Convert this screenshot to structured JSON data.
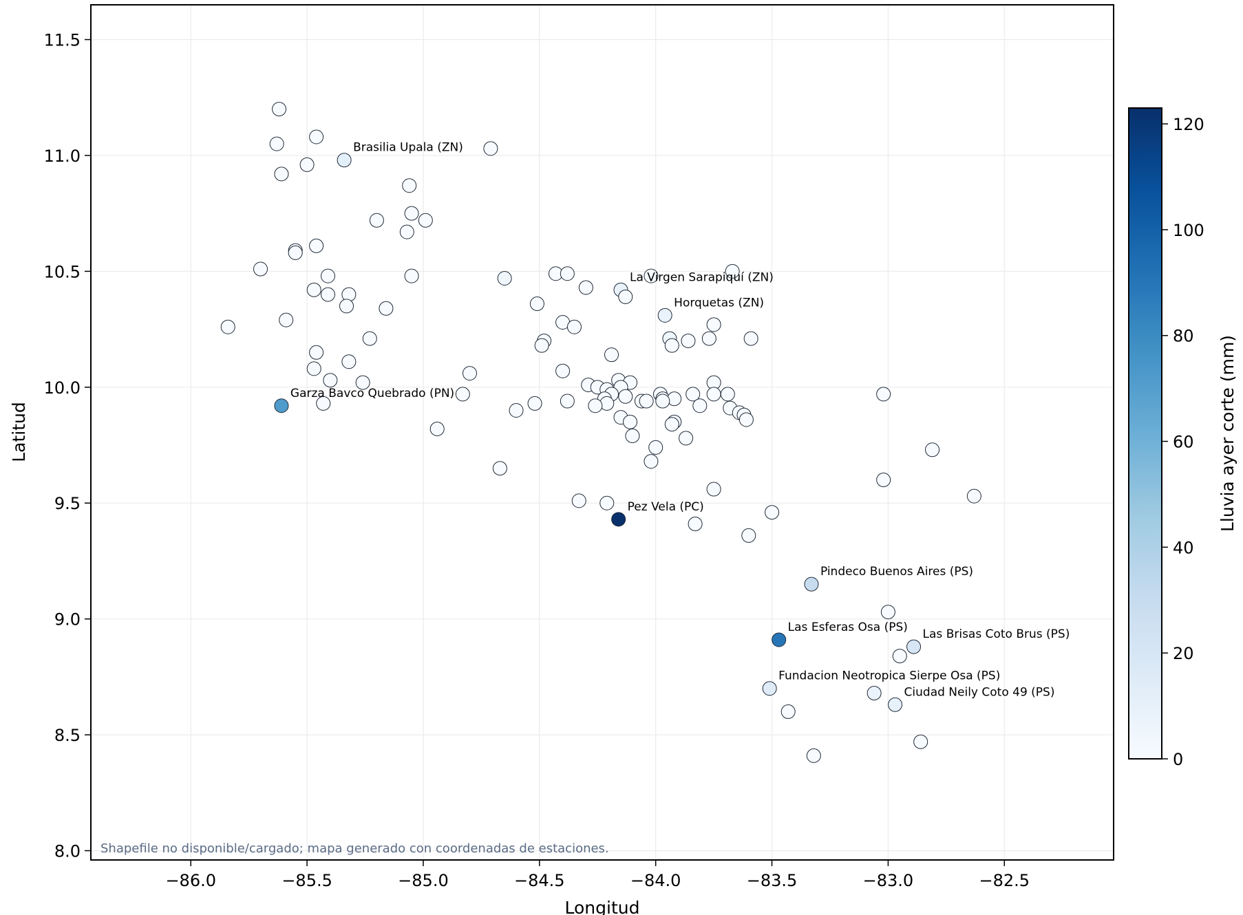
{
  "chart_data": {
    "type": "scatter",
    "title": "",
    "xlabel": "Longitud",
    "ylabel": "Latitud",
    "xlim": [
      -86.43,
      -82.03
    ],
    "ylim": [
      7.96,
      11.65
    ],
    "xticks": [
      -86.0,
      -85.5,
      -85.0,
      -84.5,
      -84.0,
      -83.5,
      -83.0,
      -82.5
    ],
    "xtick_labels": [
      "−86.0",
      "−85.5",
      "−85.0",
      "−84.5",
      "−84.0",
      "−83.5",
      "−83.0",
      "−82.5"
    ],
    "yticks": [
      8.0,
      8.5,
      9.0,
      9.5,
      10.0,
      10.5,
      11.0,
      11.5
    ],
    "ytick_labels": [
      "8.0",
      "8.5",
      "9.0",
      "9.5",
      "10.0",
      "10.5",
      "11.0",
      "11.5"
    ],
    "grid": true,
    "colormap": "Blues",
    "colorbar": {
      "label": "Lluvia ayer corte (mm)",
      "range": [
        0,
        123
      ],
      "ticks": [
        0,
        20,
        40,
        60,
        80,
        100,
        120
      ],
      "tick_labels": [
        "0",
        "20",
        "40",
        "60",
        "80",
        "100",
        "120"
      ]
    },
    "note": "Shapefile no disponible/cargado; mapa generado con coordenadas de estaciones.",
    "points": [
      {
        "x": -85.62,
        "y": 11.2,
        "v": 0
      },
      {
        "x": -85.63,
        "y": 11.05,
        "v": 0
      },
      {
        "x": -85.46,
        "y": 11.08,
        "v": 0
      },
      {
        "x": -85.5,
        "y": 10.96,
        "v": 0
      },
      {
        "x": -85.61,
        "y": 10.92,
        "v": 0
      },
      {
        "x": -85.34,
        "y": 10.98,
        "v": 12
      },
      {
        "x": -84.71,
        "y": 11.03,
        "v": 0
      },
      {
        "x": -85.06,
        "y": 10.87,
        "v": 0
      },
      {
        "x": -85.2,
        "y": 10.72,
        "v": 0
      },
      {
        "x": -85.05,
        "y": 10.75,
        "v": 0
      },
      {
        "x": -84.99,
        "y": 10.72,
        "v": 0
      },
      {
        "x": -85.07,
        "y": 10.67,
        "v": 0
      },
      {
        "x": -85.55,
        "y": 10.59,
        "v": 0
      },
      {
        "x": -85.55,
        "y": 10.58,
        "v": 0
      },
      {
        "x": -85.46,
        "y": 10.61,
        "v": 0
      },
      {
        "x": -85.7,
        "y": 10.51,
        "v": 0
      },
      {
        "x": -85.41,
        "y": 10.48,
        "v": 0
      },
      {
        "x": -85.05,
        "y": 10.48,
        "v": 0
      },
      {
        "x": -85.47,
        "y": 10.42,
        "v": 0
      },
      {
        "x": -85.41,
        "y": 10.4,
        "v": 0
      },
      {
        "x": -85.32,
        "y": 10.4,
        "v": 0
      },
      {
        "x": -85.33,
        "y": 10.35,
        "v": 0
      },
      {
        "x": -85.16,
        "y": 10.34,
        "v": 0
      },
      {
        "x": -85.84,
        "y": 10.26,
        "v": 0
      },
      {
        "x": -85.59,
        "y": 10.29,
        "v": 0
      },
      {
        "x": -85.23,
        "y": 10.21,
        "v": 0
      },
      {
        "x": -85.46,
        "y": 10.15,
        "v": 0
      },
      {
        "x": -85.32,
        "y": 10.11,
        "v": 0
      },
      {
        "x": -85.47,
        "y": 10.08,
        "v": 0
      },
      {
        "x": -85.4,
        "y": 10.03,
        "v": 0
      },
      {
        "x": -85.26,
        "y": 10.02,
        "v": 0
      },
      {
        "x": -85.43,
        "y": 9.93,
        "v": 0
      },
      {
        "x": -85.61,
        "y": 9.92,
        "v": 72
      },
      {
        "x": -84.8,
        "y": 10.06,
        "v": 0
      },
      {
        "x": -84.83,
        "y": 9.97,
        "v": 0
      },
      {
        "x": -84.94,
        "y": 9.82,
        "v": 0
      },
      {
        "x": -84.65,
        "y": 10.47,
        "v": 5
      },
      {
        "x": -84.43,
        "y": 10.49,
        "v": 0
      },
      {
        "x": -84.38,
        "y": 10.49,
        "v": 0
      },
      {
        "x": -84.3,
        "y": 10.43,
        "v": 0
      },
      {
        "x": -84.51,
        "y": 10.36,
        "v": 0
      },
      {
        "x": -84.4,
        "y": 10.28,
        "v": 0
      },
      {
        "x": -84.35,
        "y": 10.26,
        "v": 0
      },
      {
        "x": -84.48,
        "y": 10.2,
        "v": 0
      },
      {
        "x": -84.49,
        "y": 10.18,
        "v": 0
      },
      {
        "x": -84.4,
        "y": 10.07,
        "v": 0
      },
      {
        "x": -84.52,
        "y": 9.93,
        "v": 0
      },
      {
        "x": -84.6,
        "y": 9.9,
        "v": 0
      },
      {
        "x": -84.38,
        "y": 9.94,
        "v": 0
      },
      {
        "x": -84.67,
        "y": 9.65,
        "v": 0
      },
      {
        "x": -84.33,
        "y": 9.51,
        "v": 0
      },
      {
        "x": -84.21,
        "y": 9.5,
        "v": 0
      },
      {
        "x": -84.16,
        "y": 9.43,
        "v": 123
      },
      {
        "x": -84.02,
        "y": 10.48,
        "v": 0
      },
      {
        "x": -84.15,
        "y": 10.42,
        "v": 8
      },
      {
        "x": -84.13,
        "y": 10.39,
        "v": 0
      },
      {
        "x": -83.67,
        "y": 10.5,
        "v": 0
      },
      {
        "x": -83.96,
        "y": 10.31,
        "v": 8
      },
      {
        "x": -83.75,
        "y": 10.27,
        "v": 0
      },
      {
        "x": -83.94,
        "y": 10.21,
        "v": 5
      },
      {
        "x": -83.93,
        "y": 10.18,
        "v": 0
      },
      {
        "x": -83.86,
        "y": 10.2,
        "v": 0
      },
      {
        "x": -83.77,
        "y": 10.21,
        "v": 0
      },
      {
        "x": -83.59,
        "y": 10.21,
        "v": 0
      },
      {
        "x": -84.19,
        "y": 10.14,
        "v": 0
      },
      {
        "x": -84.16,
        "y": 10.03,
        "v": 0
      },
      {
        "x": -84.11,
        "y": 10.02,
        "v": 0
      },
      {
        "x": -84.29,
        "y": 10.01,
        "v": 0
      },
      {
        "x": -84.25,
        "y": 10.0,
        "v": 0
      },
      {
        "x": -84.21,
        "y": 9.99,
        "v": 0
      },
      {
        "x": -84.15,
        "y": 10.0,
        "v": 0
      },
      {
        "x": -84.19,
        "y": 9.97,
        "v": 0
      },
      {
        "x": -84.13,
        "y": 9.96,
        "v": 0
      },
      {
        "x": -84.22,
        "y": 9.95,
        "v": 0
      },
      {
        "x": -84.21,
        "y": 9.93,
        "v": 0
      },
      {
        "x": -84.26,
        "y": 9.92,
        "v": 0
      },
      {
        "x": -84.06,
        "y": 9.94,
        "v": 0
      },
      {
        "x": -84.04,
        "y": 9.94,
        "v": 0
      },
      {
        "x": -83.98,
        "y": 9.97,
        "v": 0
      },
      {
        "x": -83.97,
        "y": 9.95,
        "v": 0
      },
      {
        "x": -83.92,
        "y": 9.95,
        "v": 0
      },
      {
        "x": -83.97,
        "y": 9.94,
        "v": 0
      },
      {
        "x": -83.84,
        "y": 9.97,
        "v": 0
      },
      {
        "x": -83.75,
        "y": 10.02,
        "v": 0
      },
      {
        "x": -83.75,
        "y": 9.97,
        "v": 0
      },
      {
        "x": -83.69,
        "y": 9.97,
        "v": 0
      },
      {
        "x": -83.81,
        "y": 9.92,
        "v": 0
      },
      {
        "x": -83.68,
        "y": 9.91,
        "v": 0
      },
      {
        "x": -83.64,
        "y": 9.89,
        "v": 0
      },
      {
        "x": -83.62,
        "y": 9.88,
        "v": 0
      },
      {
        "x": -83.61,
        "y": 9.86,
        "v": 0
      },
      {
        "x": -84.15,
        "y": 9.87,
        "v": 0
      },
      {
        "x": -84.11,
        "y": 9.85,
        "v": 0
      },
      {
        "x": -83.92,
        "y": 9.85,
        "v": 0
      },
      {
        "x": -83.93,
        "y": 9.84,
        "v": 0
      },
      {
        "x": -84.1,
        "y": 9.79,
        "v": 0
      },
      {
        "x": -83.87,
        "y": 9.78,
        "v": 0
      },
      {
        "x": -84.0,
        "y": 9.74,
        "v": 0
      },
      {
        "x": -84.02,
        "y": 9.68,
        "v": 0
      },
      {
        "x": -83.75,
        "y": 9.56,
        "v": 0
      },
      {
        "x": -83.83,
        "y": 9.41,
        "v": 0
      },
      {
        "x": -83.5,
        "y": 9.46,
        "v": 0
      },
      {
        "x": -83.6,
        "y": 9.36,
        "v": 0
      },
      {
        "x": -83.02,
        "y": 9.97,
        "v": 0
      },
      {
        "x": -82.81,
        "y": 9.73,
        "v": 0
      },
      {
        "x": -83.02,
        "y": 9.6,
        "v": 0
      },
      {
        "x": -82.63,
        "y": 9.53,
        "v": 0
      },
      {
        "x": -83.33,
        "y": 9.15,
        "v": 30
      },
      {
        "x": -83.0,
        "y": 9.03,
        "v": 0
      },
      {
        "x": -83.47,
        "y": 8.91,
        "v": 90
      },
      {
        "x": -82.89,
        "y": 8.88,
        "v": 20
      },
      {
        "x": -82.95,
        "y": 8.84,
        "v": 0
      },
      {
        "x": -83.51,
        "y": 8.7,
        "v": 15
      },
      {
        "x": -83.06,
        "y": 8.68,
        "v": 8
      },
      {
        "x": -82.97,
        "y": 8.63,
        "v": 10
      },
      {
        "x": -83.43,
        "y": 8.6,
        "v": 0
      },
      {
        "x": -82.86,
        "y": 8.47,
        "v": 0
      },
      {
        "x": -83.32,
        "y": 8.41,
        "v": 0
      }
    ],
    "annotations": [
      {
        "text": "Brasilia Upala (ZN)",
        "x": -85.34,
        "y": 10.98
      },
      {
        "text": "La Virgen Sarapiquí (ZN)",
        "x": -84.15,
        "y": 10.42
      },
      {
        "text": "Horquetas (ZN)",
        "x": -83.96,
        "y": 10.31
      },
      {
        "text": "Garza Bavco Quebrado (PN)",
        "x": -85.61,
        "y": 9.92
      },
      {
        "text": "Pez Vela (PC)",
        "x": -84.16,
        "y": 9.43
      },
      {
        "text": "Pindeco Buenos Aires (PS)",
        "x": -83.33,
        "y": 9.15
      },
      {
        "text": "Las Esferas Osa (PS)",
        "x": -83.47,
        "y": 8.91
      },
      {
        "text": "Las Brisas Coto Brus (PS)",
        "x": -82.89,
        "y": 8.88
      },
      {
        "text": "Fundacion Neotropica Sierpe Osa (PS)",
        "x": -83.51,
        "y": 8.7
      },
      {
        "text": "Ciudad Neily Coto 49 (PS)",
        "x": -82.97,
        "y": 8.63
      }
    ]
  }
}
